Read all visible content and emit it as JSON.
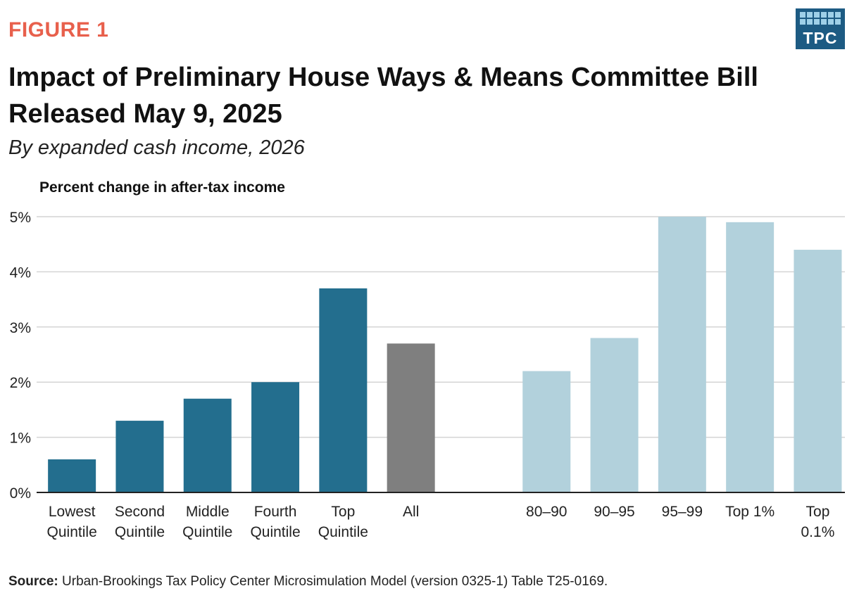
{
  "figure_label": "FIGURE 1",
  "logo_text": "TPC",
  "source": {
    "label": "Source:",
    "text": "Urban-Brookings Tax Policy Center Microsimulation Model (version 0325-1) Table T25-0169."
  },
  "chart_data": {
    "type": "bar",
    "title": "Impact of Preliminary House Ways & Means Committee Bill Released May 9, 2025",
    "subtitle": "By expanded cash income, 2026",
    "ylabel": "Percent change in after-tax income",
    "xlabel": "",
    "ylim": [
      0,
      5
    ],
    "yticks": [
      "0%",
      "1%",
      "2%",
      "3%",
      "4%",
      "5%"
    ],
    "grid": true,
    "categories": [
      [
        "Lowest",
        "Quintile"
      ],
      [
        "Second",
        "Quintile"
      ],
      [
        "Middle",
        "Quintile"
      ],
      [
        "Fourth",
        "Quintile"
      ],
      [
        "Top",
        "Quintile"
      ],
      [
        "All"
      ],
      [
        "80–90"
      ],
      [
        "90–95"
      ],
      [
        "95–99"
      ],
      [
        "Top 1%"
      ],
      [
        "Top",
        "0.1%"
      ]
    ],
    "values": [
      0.6,
      1.3,
      1.7,
      2.0,
      3.7,
      2.7,
      2.2,
      2.8,
      5.0,
      4.9,
      4.4
    ],
    "colors": {
      "quintile": "#236e8e",
      "all": "#7f7f7f",
      "top_groups": "#b2d1dc"
    },
    "bar_groups": [
      "quintile",
      "quintile",
      "quintile",
      "quintile",
      "quintile",
      "all",
      "top_groups",
      "top_groups",
      "top_groups",
      "top_groups",
      "top_groups"
    ]
  }
}
